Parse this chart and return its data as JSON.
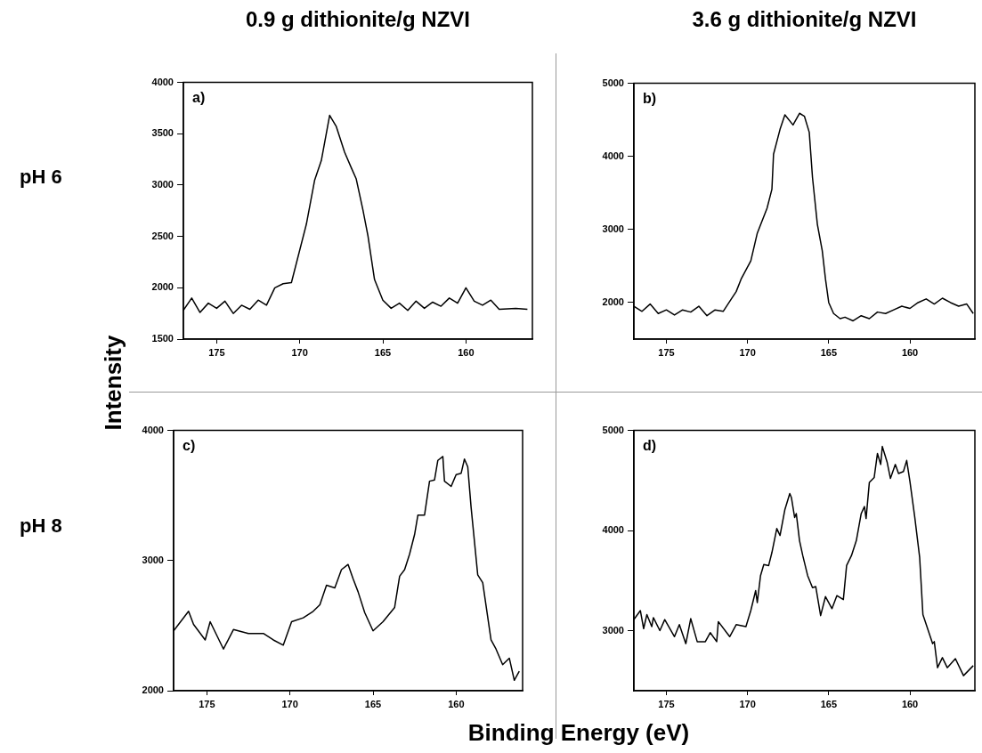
{
  "chart_data": [
    {
      "type": "line",
      "title": "0.9 g dithionite/g NZVI",
      "annotations": [
        "a)",
        "pH 6"
      ],
      "marker": "none",
      "line_style": "solid",
      "color": "#000000",
      "xlim": [
        177,
        156
      ],
      "xticks": [
        175,
        170,
        165,
        160
      ],
      "ylim": [
        1500,
        4000
      ],
      "yticks": [
        1500,
        2000,
        2500,
        3000,
        3500,
        4000
      ],
      "x": [
        177,
        176.5,
        176,
        175.5,
        175,
        174.5,
        174,
        173.5,
        173,
        172.5,
        172,
        171.5,
        171,
        170.5,
        169.6,
        169.1,
        168.7,
        168.2,
        167.8,
        167.3,
        166.9,
        166.6,
        166.2,
        165.9,
        165.5,
        165,
        164.5,
        164,
        163.5,
        163,
        162.5,
        162,
        161.5,
        161,
        160.5,
        160,
        159.5,
        159,
        158.5,
        158,
        157,
        156.3
      ],
      "values": [
        1780,
        1900,
        1760,
        1850,
        1800,
        1870,
        1750,
        1830,
        1790,
        1880,
        1830,
        2000,
        2040,
        2050,
        2620,
        3050,
        3240,
        3680,
        3570,
        3320,
        3170,
        3060,
        2760,
        2510,
        2080,
        1880,
        1800,
        1850,
        1780,
        1870,
        1800,
        1860,
        1820,
        1900,
        1850,
        2000,
        1870,
        1830,
        1880,
        1790,
        1800,
        1790
      ]
    },
    {
      "type": "line",
      "title": "3.6 g dithionite/g NZVI",
      "annotations": [
        "b)"
      ],
      "marker": "none",
      "line_style": "solid",
      "color": "#000000",
      "xlim": [
        177,
        156
      ],
      "xticks": [
        175,
        170,
        165,
        160
      ],
      "ylim": [
        1500,
        5000
      ],
      "yticks": [
        2000,
        3000,
        4000,
        5000
      ],
      "x": [
        177,
        176.5,
        176,
        175.5,
        175,
        174.5,
        174,
        173.5,
        173,
        172.5,
        172,
        171.5,
        171,
        170.7,
        170.4,
        169.8,
        169.4,
        168.8,
        168.5,
        168.4,
        168,
        167.7,
        167.2,
        166.8,
        166.5,
        166.2,
        166,
        165.7,
        165.4,
        165.2,
        165,
        164.7,
        164.3,
        164,
        163.5,
        163,
        162.5,
        162,
        161.5,
        161,
        160.5,
        160,
        159.5,
        159,
        158.5,
        158,
        157.5,
        157,
        156.5,
        156.1
      ],
      "values": [
        1950,
        1880,
        1980,
        1850,
        1900,
        1830,
        1900,
        1870,
        1950,
        1820,
        1900,
        1880,
        2050,
        2150,
        2320,
        2570,
        2950,
        3290,
        3550,
        4030,
        4370,
        4570,
        4430,
        4590,
        4550,
        4330,
        3710,
        3070,
        2710,
        2320,
        2000,
        1850,
        1780,
        1800,
        1750,
        1820,
        1780,
        1870,
        1850,
        1900,
        1950,
        1920,
        2000,
        2050,
        1980,
        2060,
        2000,
        1950,
        1980,
        1850
      ]
    },
    {
      "type": "line",
      "xlabel": "Binding Energy (eV)",
      "ylabel": "Intensity",
      "annotations": [
        "c)",
        "pH 8"
      ],
      "marker": "none",
      "line_style": "solid",
      "color": "#000000",
      "xlim": [
        177,
        156
      ],
      "xticks": [
        175,
        170,
        165,
        160
      ],
      "ylim": [
        2000,
        4000
      ],
      "yticks": [
        2000,
        3000,
        4000
      ],
      "x": [
        177,
        176.1,
        175.8,
        175.1,
        174.8,
        174,
        173.4,
        172.5,
        171.6,
        171,
        170.4,
        169.9,
        169.2,
        168.6,
        168.2,
        167.8,
        167.3,
        166.9,
        166.5,
        166.2,
        165.9,
        165.5,
        165,
        164.4,
        163.7,
        163.4,
        163.1,
        162.8,
        162.5,
        162.3,
        161.9,
        161.6,
        161.3,
        161.1,
        160.8,
        160.7,
        160.3,
        160,
        159.7,
        159.5,
        159.3,
        159.1,
        158.7,
        158.4,
        157.9,
        157.6,
        157.2,
        156.8,
        156.5,
        156.2
      ],
      "values": [
        2460,
        2610,
        2510,
        2390,
        2530,
        2320,
        2470,
        2440,
        2440,
        2390,
        2350,
        2530,
        2560,
        2610,
        2660,
        2810,
        2790,
        2930,
        2970,
        2860,
        2760,
        2600,
        2460,
        2530,
        2640,
        2880,
        2930,
        3050,
        3200,
        3350,
        3350,
        3610,
        3620,
        3770,
        3800,
        3610,
        3570,
        3660,
        3670,
        3780,
        3720,
        3410,
        2890,
        2830,
        2390,
        2320,
        2200,
        2250,
        2080,
        2150
      ]
    },
    {
      "type": "line",
      "annotations": [
        "d)"
      ],
      "marker": "none",
      "line_style": "solid",
      "color": "#000000",
      "xlim": [
        177,
        156
      ],
      "xticks": [
        175,
        170,
        165,
        160
      ],
      "ylim": [
        2400,
        5000
      ],
      "yticks": [
        3000,
        4000,
        5000
      ],
      "x": [
        177,
        176.6,
        176.4,
        176.2,
        175.9,
        175.8,
        175.4,
        175.1,
        174.5,
        174.2,
        173.8,
        173.5,
        173.1,
        172.6,
        172.3,
        171.9,
        171.8,
        171.1,
        170.7,
        170.1,
        169.8,
        169.5,
        169.4,
        169.2,
        169,
        168.7,
        168.5,
        168.2,
        168,
        167.7,
        167.4,
        167.3,
        167.1,
        167,
        166.8,
        166.6,
        166.3,
        166,
        165.8,
        165.5,
        165.2,
        164.8,
        164.5,
        164.1,
        163.9,
        163.6,
        163.3,
        163,
        162.8,
        162.7,
        162.5,
        162.2,
        162,
        161.8,
        161.7,
        161.4,
        161.2,
        160.9,
        160.7,
        160.4,
        160.2,
        160,
        159.7,
        159.4,
        159.2,
        158.6,
        158.5,
        158.3,
        158,
        157.7,
        157.2,
        156.7,
        156.1
      ],
      "values": [
        3110,
        3200,
        3020,
        3160,
        3040,
        3130,
        3000,
        3110,
        2940,
        3060,
        2870,
        3120,
        2890,
        2890,
        2980,
        2890,
        3090,
        2940,
        3060,
        3040,
        3200,
        3400,
        3280,
        3550,
        3660,
        3650,
        3780,
        4020,
        3950,
        4210,
        4370,
        4330,
        4130,
        4170,
        3900,
        3750,
        3550,
        3430,
        3440,
        3150,
        3340,
        3220,
        3350,
        3310,
        3650,
        3750,
        3900,
        4170,
        4240,
        4120,
        4480,
        4530,
        4770,
        4660,
        4840,
        4680,
        4520,
        4660,
        4570,
        4590,
        4700,
        4490,
        4130,
        3730,
        3160,
        2870,
        2890,
        2630,
        2730,
        2630,
        2720,
        2550,
        2650
      ]
    }
  ]
}
